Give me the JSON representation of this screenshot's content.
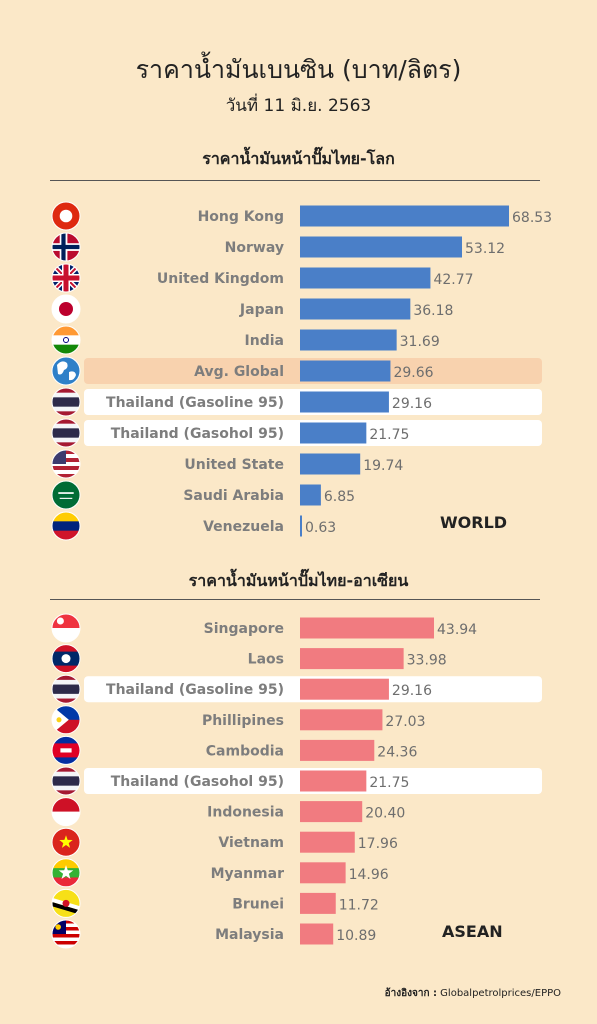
{
  "header": {
    "title": "ราคาน้ำมันเบนซิน (บาท/ลิตร)",
    "date": "วันที่ 11 มิ.ย. 2563"
  },
  "source": {
    "label": "อ้างอิงจาก :",
    "value": "Globalpetrolprices/EPPO"
  },
  "colors": {
    "background": "#fbe8c8",
    "world_bar": "#4a7fc8",
    "asean_bar": "#f17b80",
    "highlight_avg": "#f8d2ae",
    "highlight_thai": "#ffffff"
  },
  "chart_data": [
    {
      "type": "bar",
      "orientation": "horizontal",
      "title": "ราคาน้ำมันหน้าปั๊มไทย-โลก",
      "tag": "WORLD",
      "categories": [
        "Hong Kong",
        "Norway",
        "United Kingdom",
        "Japan",
        "India",
        "Avg. Global",
        "Thailand (Gasoline 95)",
        "Thailand (Gasohol 95)",
        "United State",
        "Saudi Arabia",
        "Venezuela"
      ],
      "value_labels": [
        "68.53",
        "53.12",
        "42.77",
        "36.18",
        "31.69",
        "29.66",
        "29.16",
        "21.75",
        "19.74",
        "6.85",
        "0.63"
      ],
      "values": [
        68.53,
        53.12,
        42.77,
        36.18,
        31.69,
        29.66,
        29.16,
        21.75,
        19.74,
        6.85,
        0.63
      ],
      "flags": [
        "hong-kong-flag",
        "norway-flag",
        "uk-flag",
        "japan-flag",
        "india-flag",
        "globe-icon",
        "thailand-flag",
        "thailand-flag",
        "usa-flag",
        "saudi-arabia-flag",
        "venezuela-flag"
      ],
      "highlight": [
        "",
        "",
        "",
        "",
        "",
        "avg",
        "thai",
        "thai",
        "",
        "",
        ""
      ],
      "xlim": [
        0,
        68.53
      ],
      "grid": false,
      "legend": "none"
    },
    {
      "type": "bar",
      "orientation": "horizontal",
      "title": "ราคาน้ำมันหน้าปั๊มไทย-อาเซียน",
      "tag": "ASEAN",
      "categories": [
        "Singapore",
        "Laos",
        "Thailand (Gasoline 95)",
        "Phillipines",
        "Cambodia",
        "Thailand (Gasohol 95)",
        "Indonesia",
        "Vietnam",
        "Myanmar",
        "Brunei",
        "Malaysia"
      ],
      "value_labels": [
        "43.94",
        "33.98",
        "29.16",
        "27.03",
        "24.36",
        "21.75",
        "20.40",
        "17.96",
        "14.96",
        "11.72",
        "10.89"
      ],
      "values": [
        43.94,
        33.98,
        29.16,
        27.03,
        24.36,
        21.75,
        20.4,
        17.96,
        14.96,
        11.72,
        10.89
      ],
      "flags": [
        "singapore-flag",
        "laos-flag",
        "thailand-flag",
        "philippines-flag",
        "cambodia-flag",
        "thailand-flag",
        "indonesia-flag",
        "vietnam-flag",
        "myanmar-flag",
        "brunei-flag",
        "malaysia-flag"
      ],
      "highlight": [
        "",
        "",
        "thai",
        "",
        "",
        "thai",
        "",
        "",
        "",
        "",
        ""
      ],
      "xlim": [
        0,
        68.53
      ],
      "grid": false,
      "legend": "none"
    }
  ]
}
